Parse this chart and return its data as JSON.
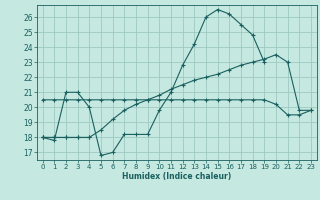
{
  "xlabel": "Humidex (Indice chaleur)",
  "background_color": "#c5e8e0",
  "grid_color": "#9ec8c0",
  "line_color": "#1a6060",
  "xlim": [
    -0.5,
    23.5
  ],
  "ylim": [
    16.5,
    26.8
  ],
  "yticks": [
    17,
    18,
    19,
    20,
    21,
    22,
    23,
    24,
    25,
    26
  ],
  "xticks": [
    0,
    1,
    2,
    3,
    4,
    5,
    6,
    7,
    8,
    9,
    10,
    11,
    12,
    13,
    14,
    15,
    16,
    17,
    18,
    19,
    20,
    21,
    22,
    23
  ],
  "series": [
    [
      18.0,
      17.8,
      21.0,
      21.0,
      20.0,
      16.8,
      17.0,
      18.2,
      18.2,
      18.2,
      19.8,
      21.0,
      22.8,
      24.2,
      26.0,
      26.5,
      26.2,
      25.5,
      24.8,
      23.0,
      null,
      null,
      null,
      null
    ],
    [
      18.0,
      18.0,
      18.0,
      18.0,
      18.0,
      18.5,
      19.2,
      19.8,
      20.2,
      20.5,
      20.8,
      21.2,
      21.5,
      21.8,
      22.0,
      22.2,
      22.5,
      22.8,
      23.0,
      23.2,
      23.5,
      23.0,
      19.8,
      19.8
    ],
    [
      20.5,
      20.5,
      20.5,
      20.5,
      20.5,
      20.5,
      20.5,
      20.5,
      20.5,
      20.5,
      20.5,
      20.5,
      20.5,
      20.5,
      20.5,
      20.5,
      20.5,
      20.5,
      20.5,
      20.5,
      20.2,
      19.5,
      19.5,
      19.8
    ],
    [
      18.0,
      18.0,
      18.0,
      18.0,
      18.0,
      null,
      null,
      null,
      null,
      null,
      null,
      null,
      null,
      null,
      null,
      null,
      null,
      null,
      null,
      null,
      null,
      null,
      null,
      null
    ]
  ]
}
